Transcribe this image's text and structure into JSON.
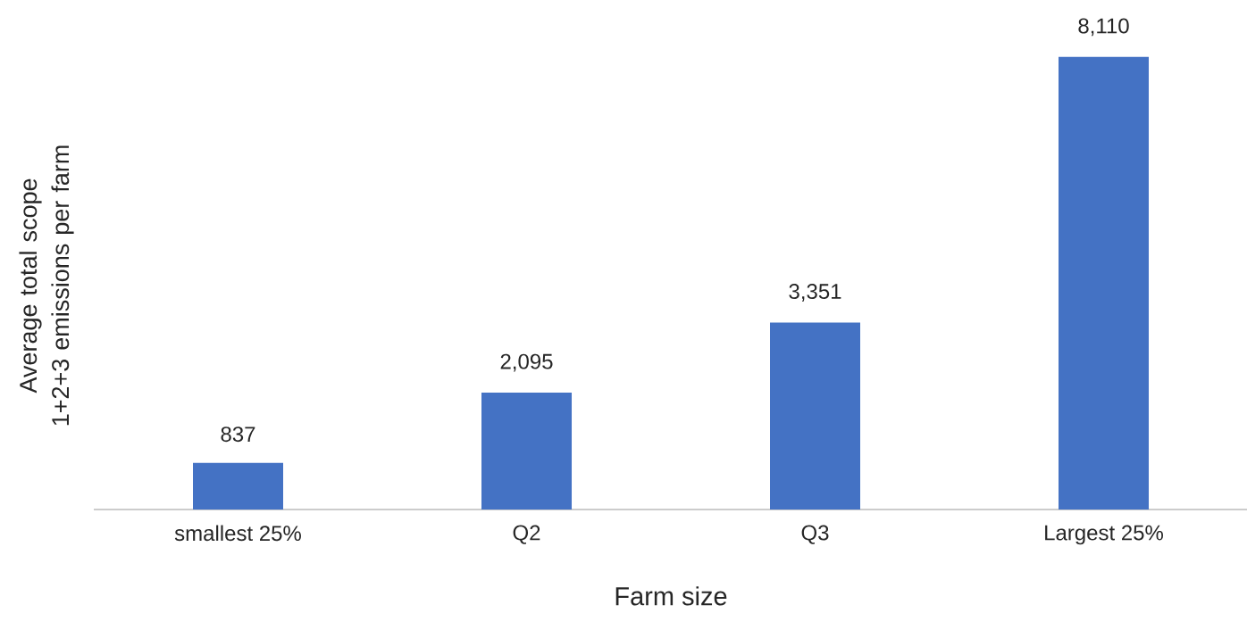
{
  "chart_data": {
    "type": "bar",
    "xlabel": "Farm size",
    "ylabel": "Average total scope 1+2+3 emissions per farm",
    "categories": [
      "smallest 25%",
      "Q2",
      "Q3",
      "Largest 25%"
    ],
    "values": [
      837,
      2095,
      3351,
      8110
    ],
    "value_labels": [
      "837",
      "2,095",
      "3,351",
      "8,110"
    ],
    "color": "#4472c4"
  }
}
